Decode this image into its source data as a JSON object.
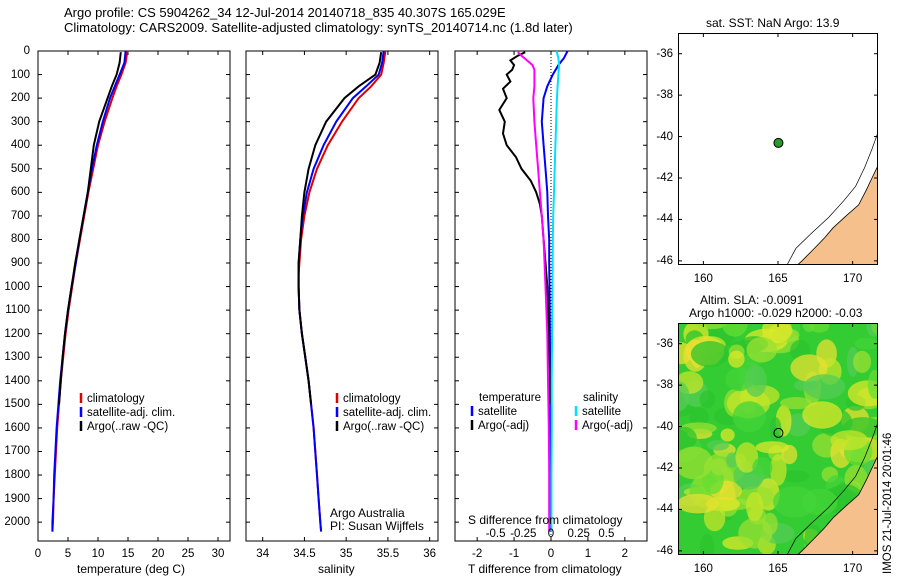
{
  "header": {
    "line1": "Argo profile: CS 5904262_34 12-Jul-2014 20140718_835 40.307S 165.029E",
    "line2": "Climatology: CARS2009. Satellite-adjusted climatology: synTS_20140714.nc (1.8d later)"
  },
  "colors": {
    "climatology": "#e00000",
    "satellite": "#0000ff",
    "argo": "#000000",
    "sat_salinity": "#00e0ff",
    "argo_salinity": "#ff00ff",
    "land": "#f5c08c"
  },
  "chart_data": [
    {
      "type": "line",
      "xlabel": "temperature (deg C)",
      "ylabel": "",
      "xlim": [
        0,
        32
      ],
      "ylim": [
        2080,
        0
      ],
      "xticks": [
        "0",
        "5",
        "10",
        "15",
        "20",
        "25",
        "30"
      ],
      "yticks": [
        "0",
        "100",
        "200",
        "300",
        "400",
        "500",
        "600",
        "700",
        "800",
        "900",
        "1000",
        "1100",
        "1200",
        "1300",
        "1400",
        "1500",
        "1600",
        "1700",
        "1800",
        "1900",
        "2000"
      ],
      "legend": [
        "climatology",
        "satellite-adj. clim.",
        "Argo(..raw -QC)"
      ],
      "series": [
        {
          "name": "climatology",
          "color": "#e00000",
          "depth": [
            0,
            50,
            100,
            150,
            200,
            300,
            400,
            500,
            600,
            700,
            800,
            900,
            1000,
            1100,
            1200,
            1300,
            1400,
            1500,
            1600,
            1700,
            1800,
            1900,
            2000,
            2040
          ],
          "values": [
            14.9,
            14.6,
            13.9,
            13.1,
            12.4,
            11.1,
            10.0,
            9.2,
            8.4,
            7.7,
            7.0,
            6.3,
            5.7,
            5.1,
            4.6,
            4.2,
            3.8,
            3.5,
            3.2,
            3.0,
            2.8,
            2.6,
            2.5,
            2.4
          ]
        },
        {
          "name": "satellite-adj. clim.",
          "color": "#0000ff",
          "depth": [
            0,
            50,
            100,
            150,
            200,
            300,
            400,
            500,
            600,
            700,
            800,
            900,
            1000,
            1100,
            1200,
            1300,
            1400,
            1500,
            1600,
            1700,
            1800,
            1900,
            2000,
            2040
          ],
          "values": [
            14.6,
            14.4,
            13.6,
            12.8,
            12.0,
            10.8,
            9.8,
            9.0,
            8.3,
            7.6,
            6.9,
            6.3,
            5.6,
            5.0,
            4.5,
            4.1,
            3.7,
            3.4,
            3.1,
            2.9,
            2.7,
            2.6,
            2.4,
            2.4
          ]
        },
        {
          "name": "Argo(..raw -QC)",
          "color": "#000000",
          "depth": [
            5,
            50,
            100,
            150,
            200,
            300,
            400,
            500,
            600,
            700,
            800,
            900,
            1000,
            1100,
            1200,
            1300,
            1400,
            1500
          ],
          "values": [
            13.8,
            13.6,
            13.1,
            12.3,
            11.6,
            10.2,
            9.3,
            8.8,
            8.3,
            7.6,
            6.9,
            6.2,
            5.6,
            5.0,
            4.5,
            4.1,
            3.8,
            3.5
          ]
        }
      ]
    },
    {
      "type": "line",
      "xlabel": "salinity",
      "xlim": [
        33.8,
        36.1
      ],
      "ylim": [
        2080,
        0
      ],
      "xticks": [
        "34",
        "34.5",
        "35",
        "35.5",
        "36"
      ],
      "legend": [
        "climatology",
        "satellite-adj. clim.",
        "Argo(..raw -QC)"
      ],
      "annotation": [
        "Argo Australia",
        "PI: Susan Wijffels"
      ],
      "series": [
        {
          "name": "climatology",
          "color": "#e00000",
          "depth": [
            0,
            50,
            100,
            150,
            200,
            300,
            400,
            500,
            600,
            700,
            800,
            900,
            950,
            1000,
            1100,
            1200,
            1300,
            1400,
            1500,
            1600,
            1700,
            1800,
            1900,
            2000,
            2040
          ],
          "values": [
            35.47,
            35.45,
            35.42,
            35.3,
            35.15,
            34.95,
            34.78,
            34.65,
            34.56,
            34.5,
            34.46,
            34.44,
            34.43,
            34.43,
            34.44,
            34.47,
            34.51,
            34.55,
            34.58,
            34.61,
            34.63,
            34.65,
            34.67,
            34.69,
            34.7
          ]
        },
        {
          "name": "satellite-adj. clim.",
          "color": "#0000ff",
          "depth": [
            0,
            50,
            100,
            150,
            200,
            300,
            400,
            500,
            600,
            700,
            800,
            900,
            950,
            1000,
            1100,
            1200,
            1300,
            1400,
            1500,
            1600,
            1700,
            1800,
            1900,
            2000,
            2040
          ],
          "values": [
            35.45,
            35.43,
            35.39,
            35.24,
            35.08,
            34.88,
            34.73,
            34.61,
            34.53,
            34.48,
            34.45,
            34.43,
            34.43,
            34.43,
            34.44,
            34.47,
            34.51,
            34.55,
            34.58,
            34.61,
            34.63,
            34.65,
            34.67,
            34.69,
            34.7
          ]
        },
        {
          "name": "Argo(..raw -QC)",
          "color": "#000000",
          "depth": [
            5,
            50,
            100,
            150,
            200,
            300,
            400,
            500,
            600,
            700,
            800,
            900,
            950,
            1000,
            1100,
            1200,
            1300,
            1400,
            1500
          ],
          "values": [
            35.42,
            35.4,
            35.35,
            35.15,
            34.98,
            34.76,
            34.63,
            34.55,
            34.5,
            34.47,
            34.45,
            34.43,
            34.43,
            34.43,
            34.44,
            34.47,
            34.51,
            34.55,
            34.58
          ]
        }
      ]
    },
    {
      "type": "line",
      "xlabel": "T difference from climatology",
      "top_label": "S difference from climatology",
      "xlim": [
        -2.6,
        2.6
      ],
      "ylim": [
        2080,
        0
      ],
      "xticks": [
        "-2",
        "-1",
        "0",
        "1",
        "2"
      ],
      "sticks": [
        "-0.5",
        "-0.25",
        "0",
        "0.25",
        "0.5"
      ],
      "legend_titles": [
        "temperature",
        "salinity"
      ],
      "legend": [
        "satellite",
        "Argo(-adj)",
        "satellite",
        "Argo(-adj)"
      ],
      "series": [
        {
          "name": "satellite",
          "color": "#0000ff",
          "depth": [
            0,
            30,
            60,
            100,
            150,
            200,
            300,
            400,
            500,
            600,
            700,
            800,
            900,
            1000,
            1200,
            1400,
            1600,
            1800,
            2000,
            2040
          ],
          "values": [
            0.45,
            0.35,
            0.2,
            0.05,
            -0.1,
            -0.2,
            -0.25,
            -0.2,
            -0.15,
            -0.1,
            -0.08,
            -0.05,
            -0.05,
            -0.04,
            -0.03,
            -0.02,
            -0.02,
            -0.02,
            -0.01,
            -0.01
          ]
        },
        {
          "name": "Argo(-adj)",
          "color": "#000000",
          "depth": [
            5,
            20,
            40,
            60,
            80,
            100,
            130,
            160,
            200,
            250,
            300,
            350,
            400,
            450,
            500,
            550,
            600,
            650,
            700,
            800,
            900,
            1000,
            1100,
            1200,
            1300,
            1400,
            1500
          ],
          "values": [
            -0.7,
            -0.9,
            -1.1,
            -1.0,
            -1.05,
            -1.2,
            -1.1,
            -1.3,
            -1.2,
            -1.4,
            -1.25,
            -1.3,
            -1.2,
            -0.95,
            -0.8,
            -0.55,
            -0.4,
            -0.3,
            -0.25,
            -0.2,
            -0.15,
            -0.1,
            -0.08,
            -0.06,
            -0.04,
            -0.03,
            -0.02
          ]
        },
        {
          "name": "satellite",
          "color": "#00e0ff",
          "depth": [
            0,
            30,
            60,
            100,
            150,
            200,
            300,
            400,
            500,
            600,
            700,
            800,
            1000,
            1200,
            1400,
            1600,
            1800,
            2000,
            2040
          ],
          "values": [
            0.15,
            0.2,
            0.22,
            0.2,
            0.18,
            0.16,
            0.14,
            0.12,
            0.1,
            0.08,
            0.06,
            0.05,
            0.04,
            0.03,
            0.02,
            0.02,
            0.01,
            0.01,
            0.01
          ]
        },
        {
          "name": "Argo(-adj)",
          "color": "#ff00ff",
          "depth": [
            5,
            20,
            40,
            60,
            80,
            100,
            150,
            200,
            300,
            400,
            500,
            600,
            700,
            800,
            1000,
            1200,
            1400,
            1600,
            1800,
            2000,
            2040
          ],
          "values": [
            -0.9,
            -0.8,
            -0.65,
            -0.5,
            -0.45,
            -0.45,
            -0.45,
            -0.48,
            -0.45,
            -0.4,
            -0.35,
            -0.3,
            -0.25,
            -0.2,
            -0.15,
            -0.1,
            -0.08,
            -0.06,
            -0.05,
            -0.05,
            -0.05
          ]
        }
      ]
    }
  ],
  "maps": {
    "sst": {
      "title": "sat. SST: NaN Argo: 13.9",
      "xticks": [
        "160",
        "165",
        "170"
      ],
      "yticks": [
        "-36",
        "-38",
        "-40",
        "-42",
        "-44",
        "-46"
      ],
      "float_lon": 165.029,
      "float_lat": -40.307
    },
    "sla": {
      "title1": "Altim. SLA: -0.0091",
      "title2": "Argo h1000: -0.029 h2000: -0.03",
      "xticks": [
        "160",
        "165",
        "170"
      ],
      "yticks": [
        "-36",
        "-38",
        "-40",
        "-42",
        "-44",
        "-46"
      ],
      "float_lon": 165.029,
      "float_lat": -40.307
    }
  },
  "footer_stamp": "IMOS 21-Jul-2014 20:01:46"
}
